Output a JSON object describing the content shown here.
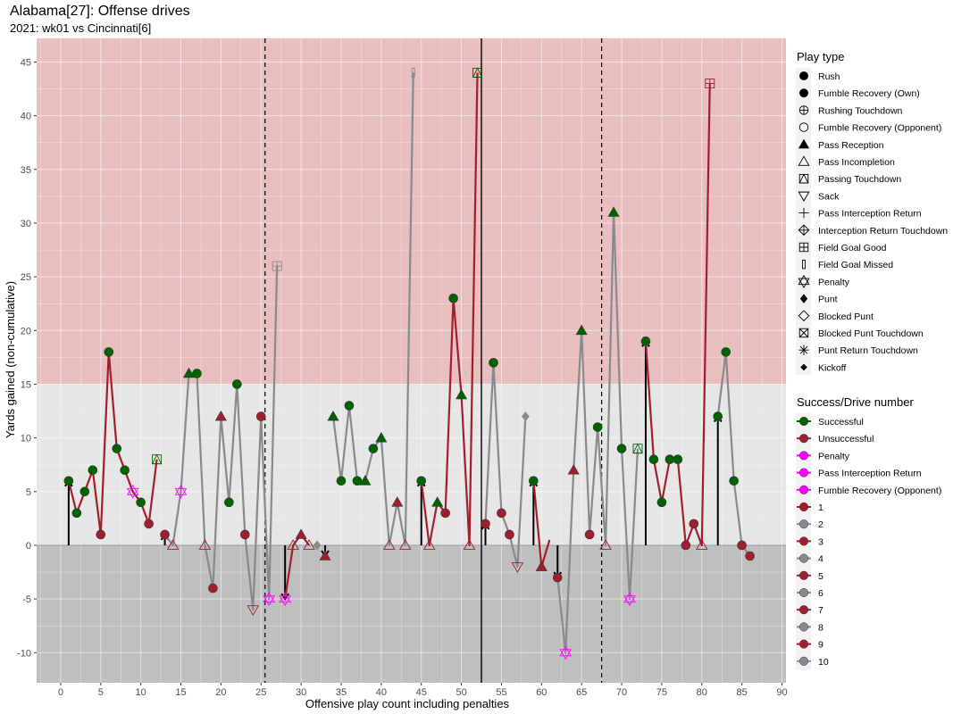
{
  "chart_data": {
    "type": "line",
    "title": "Alabama[27]: Offense drives",
    "subtitle": "2021: wk01 vs Cincinnati[6]",
    "xlabel": "Offensive play count including penalties",
    "ylabel": "Yards gained (non-cumulative)",
    "xlim": [
      -3,
      90.5
    ],
    "ylim": [
      -12.8,
      47.2
    ],
    "x_ticks": [
      0,
      5,
      10,
      15,
      20,
      25,
      30,
      35,
      40,
      45,
      50,
      55,
      60,
      65,
      70,
      75,
      80,
      85,
      90
    ],
    "y_ticks": [
      -10,
      -5,
      0,
      5,
      10,
      15,
      20,
      25,
      30,
      35,
      40,
      45
    ],
    "grid": true,
    "bands": [
      {
        "from": 15,
        "to": 47.2,
        "color": "#e8bebe"
      },
      {
        "from": 0,
        "to": 15,
        "color": "#e6e6e6"
      },
      {
        "from": -12.8,
        "to": 0,
        "color": "#bfbfbf"
      }
    ],
    "quarter_lines": [
      25.5,
      67.5
    ],
    "half_line": 52.5,
    "colors": {
      "successful": "#006400",
      "unsuccessful": "#a01f2e",
      "penalty": "#ff00ff",
      "drive_odd": "#a01f2e",
      "drive_even": "#868b8f"
    },
    "drives": [
      {
        "name": "1",
        "points": [
          [
            1,
            6,
            "rush",
            "s"
          ],
          [
            2,
            3,
            "rush",
            "s"
          ],
          [
            3,
            5,
            "rush",
            "s"
          ],
          [
            4,
            7,
            "rush",
            "s"
          ],
          [
            5,
            1,
            "rush",
            "u"
          ],
          [
            6,
            18,
            "rush",
            "s"
          ],
          [
            7,
            9,
            "rush",
            "s"
          ],
          [
            8,
            7,
            "rush",
            "s"
          ],
          [
            9,
            5,
            "penalty",
            "p"
          ],
          [
            10,
            4,
            "rush",
            "s"
          ],
          [
            11,
            2,
            "rush",
            "u"
          ],
          [
            12,
            8,
            "pass_td",
            "s"
          ]
        ]
      },
      {
        "name": "2",
        "points": [
          [
            13,
            1,
            "rush",
            "u"
          ],
          [
            14,
            0,
            "pass_inc",
            "u"
          ],
          [
            15,
            5,
            "penalty",
            "p"
          ],
          [
            16,
            16,
            "pass",
            "s"
          ],
          [
            17,
            16,
            "rush",
            "s"
          ],
          [
            18,
            0,
            "pass_inc",
            "u"
          ],
          [
            19,
            -4,
            "rush",
            "u"
          ],
          [
            20,
            12,
            "pass",
            "u"
          ],
          [
            21,
            4,
            "rush",
            "s"
          ],
          [
            22,
            15,
            "rush",
            "s"
          ],
          [
            23,
            1,
            "rush",
            "u"
          ],
          [
            24,
            -6,
            "sack",
            "u"
          ],
          [
            25,
            12,
            "rush",
            "u"
          ],
          [
            26,
            -5,
            "penalty",
            "p"
          ],
          [
            27,
            26,
            "fg_good",
            "u"
          ]
        ]
      },
      {
        "name": "3",
        "points": [
          [
            28,
            -5,
            "penalty",
            "p"
          ],
          [
            29,
            0,
            "pass_inc",
            "u"
          ],
          [
            30,
            1,
            "pass",
            "u"
          ],
          [
            31,
            0,
            "pass_inc",
            "u"
          ]
        ]
      },
      {
        "name": "4",
        "points": [
          [
            32,
            0,
            "punt",
            "u"
          ]
        ]
      },
      {
        "name": "5",
        "points": [
          [
            33,
            -1,
            "pass",
            "u"
          ]
        ]
      },
      {
        "name": "6",
        "points": [
          [
            34,
            12,
            "pass",
            "s"
          ],
          [
            35,
            6,
            "rush",
            "s"
          ],
          [
            36,
            13,
            "rush",
            "s"
          ],
          [
            37,
            6,
            "rush",
            "s"
          ],
          [
            38,
            6,
            "pass",
            "s"
          ],
          [
            39,
            9,
            "rush",
            "s"
          ],
          [
            40,
            10,
            "pass",
            "s"
          ],
          [
            41,
            0,
            "pass_inc",
            "u"
          ],
          [
            42,
            4,
            "pass",
            "u"
          ],
          [
            43,
            0,
            "pass_inc",
            "u"
          ],
          [
            44,
            44,
            "fg_missed",
            "u"
          ]
        ]
      },
      {
        "name": "7",
        "points": [
          [
            45,
            6,
            "rush",
            "s"
          ],
          [
            46,
            0,
            "pass_inc",
            "u"
          ],
          [
            47,
            4,
            "pass",
            "s"
          ],
          [
            48,
            3,
            "rush",
            "u"
          ],
          [
            49,
            23,
            "rush",
            "s"
          ],
          [
            50,
            14,
            "pass",
            "s"
          ],
          [
            51,
            0,
            "pass_inc",
            "u"
          ],
          [
            52,
            44,
            "pass_td",
            "s"
          ]
        ]
      },
      {
        "name": "8",
        "points": [
          [
            53,
            2,
            "rush",
            "u"
          ],
          [
            54,
            17,
            "rush",
            "s"
          ],
          [
            55,
            3,
            "rush",
            "u"
          ],
          [
            56,
            1,
            "rush",
            "u"
          ],
          [
            57,
            -2,
            "sack",
            "u"
          ],
          [
            58,
            12,
            "punt",
            "u"
          ]
        ]
      },
      {
        "name": "9",
        "points": [
          [
            59,
            6,
            "rush",
            "s"
          ],
          [
            60,
            -2,
            "pass",
            "u"
          ],
          [
            61,
            0.5,
            "none",
            "u"
          ]
        ]
      },
      {
        "name": "10",
        "points": [
          [
            62,
            -3,
            "rush",
            "u"
          ],
          [
            63,
            -10,
            "penalty",
            "p"
          ],
          [
            64,
            7,
            "pass",
            "u"
          ],
          [
            65,
            20,
            "pass",
            "s"
          ],
          [
            66,
            1,
            "rush",
            "u"
          ],
          [
            67,
            11,
            "rush",
            "s"
          ],
          [
            68,
            0,
            "pass_inc",
            "u"
          ],
          [
            69,
            31,
            "pass",
            "s"
          ],
          [
            70,
            9,
            "rush",
            "s"
          ],
          [
            71,
            -5,
            "penalty",
            "p"
          ],
          [
            72,
            9,
            "pass_td",
            "s"
          ]
        ]
      },
      {
        "name": "11",
        "points": [
          [
            73,
            19,
            "rush",
            "s"
          ],
          [
            74,
            8,
            "rush",
            "s"
          ],
          [
            75,
            4,
            "rush",
            "s"
          ],
          [
            76,
            8,
            "rush",
            "s"
          ],
          [
            77,
            8,
            "rush",
            "s"
          ],
          [
            78,
            0,
            "rush",
            "u"
          ],
          [
            79,
            2,
            "rush",
            "u"
          ],
          [
            80,
            0,
            "pass_inc",
            "u"
          ],
          [
            81,
            43,
            "fg_good",
            "u"
          ]
        ]
      },
      {
        "name": "12",
        "points": [
          [
            82,
            12,
            "rush",
            "s"
          ],
          [
            83,
            18,
            "rush",
            "s"
          ],
          [
            84,
            6,
            "rush",
            "s"
          ],
          [
            85,
            0,
            "rush",
            "u"
          ],
          [
            86,
            -1,
            "rush",
            "u"
          ]
        ]
      }
    ],
    "drive_arrows": [
      {
        "x": 1,
        "from": 0,
        "to": 6
      },
      {
        "x": 13,
        "from": 0,
        "to": 1
      },
      {
        "x": 28,
        "from": 0,
        "to": -5
      },
      {
        "x": 33,
        "from": 0,
        "to": -1
      },
      {
        "x": 45,
        "from": 0,
        "to": 6
      },
      {
        "x": 53,
        "from": 0,
        "to": 2
      },
      {
        "x": 59,
        "from": 0,
        "to": 6
      },
      {
        "x": 62,
        "from": 0,
        "to": -3
      },
      {
        "x": 73,
        "from": 0,
        "to": 19
      },
      {
        "x": 82,
        "from": 0,
        "to": 12
      }
    ],
    "legend_play_type": {
      "title": "Play type",
      "items": [
        {
          "label": "Rush",
          "shape": "circle-filled"
        },
        {
          "label": "Fumble Recovery (Own)",
          "shape": "circle-filled"
        },
        {
          "label": "Rushing Touchdown",
          "shape": "circle-plus"
        },
        {
          "label": "Fumble Recovery (Opponent)",
          "shape": "circle-open"
        },
        {
          "label": "Pass Reception",
          "shape": "triangle-filled"
        },
        {
          "label": "Pass Incompletion",
          "shape": "triangle-open"
        },
        {
          "label": "Passing Touchdown",
          "shape": "square-triangle"
        },
        {
          "label": "Sack",
          "shape": "triangle-down-open"
        },
        {
          "label": "Pass Interception Return",
          "shape": "plus"
        },
        {
          "label": "Interception Return Touchdown",
          "shape": "diamond-plus"
        },
        {
          "label": "Field Goal Good",
          "shape": "square-plus"
        },
        {
          "label": "Field Goal Missed",
          "shape": "rect-narrow"
        },
        {
          "label": "Penalty",
          "shape": "hexagram"
        },
        {
          "label": "Punt",
          "shape": "diamond-filled"
        },
        {
          "label": "Blocked Punt",
          "shape": "diamond-open"
        },
        {
          "label": "Blocked Punt Touchdown",
          "shape": "square-x"
        },
        {
          "label": "Punt Return Touchdown",
          "shape": "asterisk"
        },
        {
          "label": "Kickoff",
          "shape": "diamond-filled-small"
        }
      ]
    },
    "legend_success": {
      "title": "Success/Drive number",
      "items": [
        {
          "label": "Successful",
          "color": "#006400"
        },
        {
          "label": "Unsuccessful",
          "color": "#a01f2e"
        },
        {
          "label": "Penalty",
          "color": "#ff00ff"
        },
        {
          "label": "Pass Interception Return",
          "color": "#ff00ff"
        },
        {
          "label": "Fumble Recovery (Opponent)",
          "color": "#ff00ff"
        },
        {
          "label": "1",
          "color": "#a01f2e"
        },
        {
          "label": "2",
          "color": "#868b8f"
        },
        {
          "label": "3",
          "color": "#a01f2e"
        },
        {
          "label": "4",
          "color": "#868b8f"
        },
        {
          "label": "5",
          "color": "#a01f2e"
        },
        {
          "label": "6",
          "color": "#868b8f"
        },
        {
          "label": "7",
          "color": "#a01f2e"
        },
        {
          "label": "8",
          "color": "#868b8f"
        },
        {
          "label": "9",
          "color": "#a01f2e"
        },
        {
          "label": "10",
          "color": "#868b8f"
        }
      ]
    }
  }
}
